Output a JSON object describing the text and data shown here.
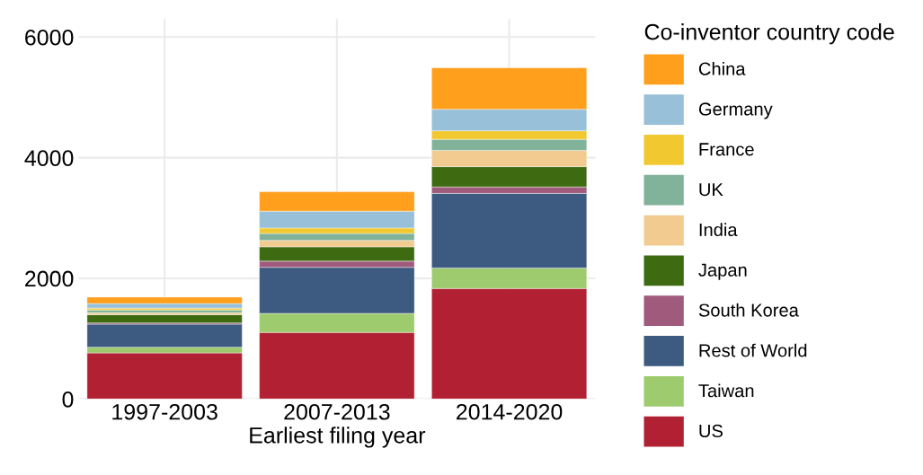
{
  "chart_data": {
    "type": "bar",
    "stacked": true,
    "xlabel": "Earliest filing year",
    "legend_title": "Co-inventor country code",
    "legend": "right",
    "grid": true,
    "categories": [
      "1997-2003",
      "2007-2013",
      "2014-2020"
    ],
    "ylim": [
      0,
      6300
    ],
    "yticks": [
      0,
      2000,
      4000,
      6000
    ],
    "series": [
      {
        "name": "US",
        "color": "#b22133",
        "values": [
          763,
          1104,
          1832
        ]
      },
      {
        "name": "Taiwan",
        "color": "#9dcb6e",
        "values": [
          96,
          316,
          340
        ]
      },
      {
        "name": "Rest of World",
        "color": "#3d5a80",
        "values": [
          382,
          763,
          1237
        ]
      },
      {
        "name": "South Korea",
        "color": "#a05a7c",
        "values": [
          20,
          102,
          107
        ]
      },
      {
        "name": "Japan",
        "color": "#3e6b12",
        "values": [
          137,
          238,
          336
        ]
      },
      {
        "name": "India",
        "color": "#f2cb90",
        "values": [
          31,
          107,
          270
        ]
      },
      {
        "name": "UK",
        "color": "#80b39a",
        "values": [
          46,
          113,
          183
        ]
      },
      {
        "name": "France",
        "color": "#f2c830",
        "values": [
          31,
          92,
          142
        ]
      },
      {
        "name": "Germany",
        "color": "#98c0d8",
        "values": [
          76,
          279,
          356
        ]
      },
      {
        "name": "China",
        "color": "#ff9f1c",
        "values": [
          107,
          321,
          687
        ]
      }
    ]
  }
}
